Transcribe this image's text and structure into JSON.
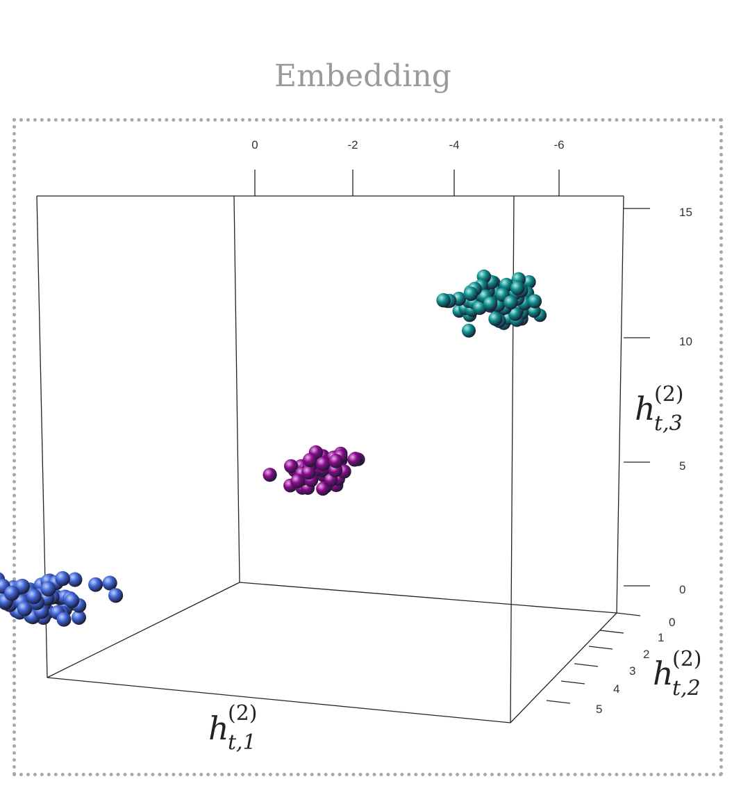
{
  "chart_data": {
    "type": "scatter",
    "title": "Embedding",
    "xlabel": "h_{t,1}^{(2)}",
    "ylabel": "h_{t,2}^{(2)}",
    "zlabel": "h_{t,3}^{(2)}",
    "x_ticks": [
      "0",
      "-2",
      "-4",
      "-6"
    ],
    "y_ticks": [
      "0",
      "1",
      "2",
      "3",
      "4",
      "5"
    ],
    "z_ticks": [
      "15",
      "10",
      "5",
      "0"
    ],
    "label_parts": {
      "x": {
        "base": "h",
        "sup": "(2)",
        "sub": "t,1"
      },
      "y": {
        "base": "h",
        "sup": "(2)",
        "sub": "t,2"
      },
      "z": {
        "base": "h",
        "sup": "(2)",
        "sub": "t,3"
      }
    },
    "series": [
      {
        "color": "#3f63d4",
        "highlight": "#bcd0ff",
        "center": [
          1.8,
          2.2,
          1.5
        ],
        "spread": [
          1.4,
          0.9,
          0.9
        ],
        "count": 70
      },
      {
        "color": "#8a0a8c",
        "highlight": "#e9b2ea",
        "center": [
          -2.9,
          1.0,
          6.8
        ],
        "spread": [
          0.9,
          0.7,
          1.0
        ],
        "count": 55
      },
      {
        "color": "#0e8f8c",
        "highlight": "#b6ecea",
        "center": [
          -6.2,
          1.0,
          13.2
        ],
        "spread": [
          0.9,
          0.8,
          1.0
        ],
        "count": 95
      }
    ]
  }
}
